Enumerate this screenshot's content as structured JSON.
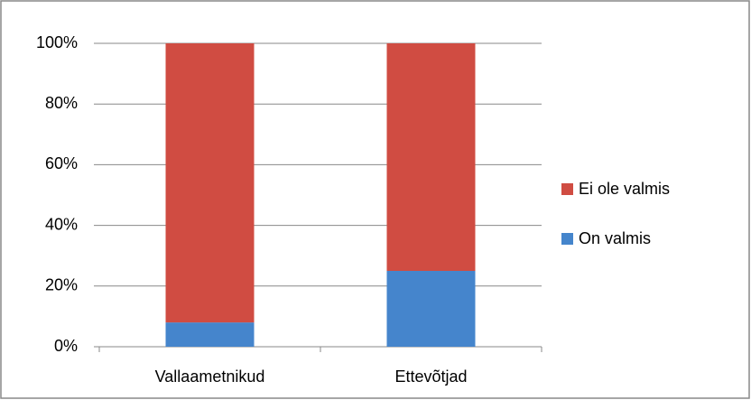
{
  "chart_data": {
    "type": "stacked_bar",
    "categories": [
      "Vallaametnikud",
      "Ettevõtjad"
    ],
    "series": [
      {
        "name": "On valmis",
        "color": "#4585cc",
        "values": [
          8,
          25
        ]
      },
      {
        "name": "Ei ole valmis",
        "color": "#d04c42",
        "values": [
          92,
          75
        ]
      }
    ],
    "ylim": [
      0,
      100
    ],
    "yticks": [
      {
        "value": 0,
        "label": "0%"
      },
      {
        "value": 20,
        "label": "20%"
      },
      {
        "value": 40,
        "label": "40%"
      },
      {
        "value": 60,
        "label": "60%"
      },
      {
        "value": 80,
        "label": "80%"
      },
      {
        "value": 100,
        "label": "100%"
      }
    ],
    "grid": true,
    "legend": "right"
  }
}
